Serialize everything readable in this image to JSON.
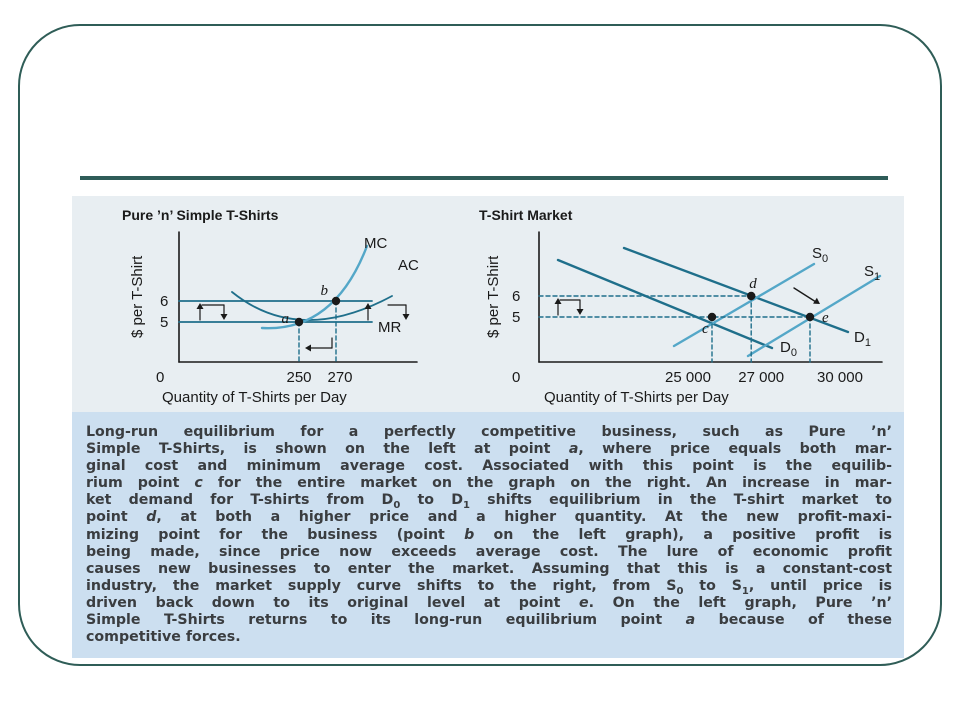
{
  "chart_data": [
    {
      "type": "line",
      "title": "Pure ’n’ Simple T-Shirts",
      "xlabel": "Quantity of T-Shirts per Day",
      "ylabel": "$ per T-Shirt",
      "x_ticks": [
        "0",
        "250",
        "270"
      ],
      "y_ticks": [
        "6",
        "5"
      ],
      "series": [
        {
          "name": "MC"
        },
        {
          "name": "AC"
        },
        {
          "name": "MR"
        }
      ],
      "points": [
        {
          "label": "a",
          "x": 250,
          "y": 5
        },
        {
          "label": "b",
          "x": 270,
          "y": 6
        }
      ]
    },
    {
      "type": "line",
      "title": "T-Shirt Market",
      "xlabel": "Quantity of T-Shirts per Day",
      "ylabel": "$ per T-Shirt",
      "x_ticks": [
        "0",
        "25 000",
        "27 000",
        "30 000"
      ],
      "y_ticks": [
        "6",
        "5"
      ],
      "series": [
        {
          "name": "S",
          "sub": "0"
        },
        {
          "name": "S",
          "sub": "1"
        },
        {
          "name": "D",
          "sub": "0"
        },
        {
          "name": "D",
          "sub": "1"
        }
      ],
      "points": [
        {
          "label": "c",
          "x": 25000,
          "y": 5
        },
        {
          "label": "d",
          "x": 27000,
          "y": 6
        },
        {
          "label": "e",
          "x": 30000,
          "y": 5
        }
      ]
    }
  ],
  "caption": {
    "lines": [
      [
        {
          "t": "Long-run equilibrium for a perfectly competitive business, such as Pure ’n’"
        }
      ],
      [
        {
          "t": "Simple T-Shirts, is shown on the left at point "
        },
        {
          "t": "a",
          "i": true
        },
        {
          "t": ", where price equals both mar-"
        }
      ],
      [
        {
          "t": "ginal cost and minimum average cost. Associated with this point is the equilib-"
        }
      ],
      [
        {
          "t": "rium point "
        },
        {
          "t": "c",
          "i": true
        },
        {
          "t": " for the entire market on the graph on the right. An increase in mar-"
        }
      ],
      [
        {
          "t": "ket demand for T-shirts from D"
        },
        {
          "t": "0",
          "s": true
        },
        {
          "t": " to D"
        },
        {
          "t": "1",
          "s": true
        },
        {
          "t": " shifts equilibrium in the T-shirt market to"
        }
      ],
      [
        {
          "t": "point "
        },
        {
          "t": "d",
          "i": true
        },
        {
          "t": ", at both a higher price and a higher quantity. At the new profit-maxi-"
        }
      ],
      [
        {
          "t": "mizing point for the business (point "
        },
        {
          "t": "b",
          "i": true
        },
        {
          "t": " on the left graph), a positive profit is"
        }
      ],
      [
        {
          "t": "being made, since price now exceeds average cost. The lure of economic profit"
        }
      ],
      [
        {
          "t": "causes new businesses to enter the market. Assuming that this is a constant-cost"
        }
      ],
      [
        {
          "t": "industry, the market supply curve shifts to the right, from S"
        },
        {
          "t": "0",
          "s": true
        },
        {
          "t": " to S"
        },
        {
          "t": "1",
          "s": true
        },
        {
          "t": ", until price is"
        }
      ],
      [
        {
          "t": "driven back down to its original level at point "
        },
        {
          "t": "e",
          "i": true
        },
        {
          "t": ". On the left graph, Pure ’n’"
        }
      ],
      [
        {
          "t": "Simple T-Shirts returns to its long-run equilibrium point "
        },
        {
          "t": "a",
          "i": true
        },
        {
          "t": " because of these"
        }
      ],
      [
        {
          "t": "competitive forces."
        }
      ]
    ]
  },
  "colors": {
    "frame": "#2f5d57",
    "rule": "#2e5c58",
    "panel": "#ccdff0",
    "chart_bg": "#e8eef2",
    "dark_curve": "#1f6f8b",
    "light_curve": "#54a7c8",
    "text": "#1a1a1a"
  }
}
